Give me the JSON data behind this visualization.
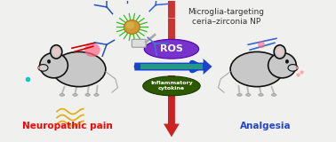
{
  "title": "Microglia-targeting\nceria–zirconia NP",
  "title_fontsize": 6.5,
  "title_color": "#333333",
  "label_left": "Neuropathic pain",
  "label_left_color": "#ff0000",
  "label_right": "Analgesia",
  "label_right_color": "#2244cc",
  "ros_color": "#6633cc",
  "ros_label": "ROS",
  "cytokine_color": "#2d5a00",
  "cytokine_label": "Inflammatory\ncytokine",
  "arrow_horiz_color": "#1a44cc",
  "arrow_vert_color": "#cc2222",
  "background_color": "#f0f0ee",
  "mouse_body_color": "#c8c8c8",
  "mouse_edge_color": "#111111",
  "np_core_color": "#c8a030",
  "np_ray_color": "#44bb33",
  "antibody_color": "#2244aa"
}
